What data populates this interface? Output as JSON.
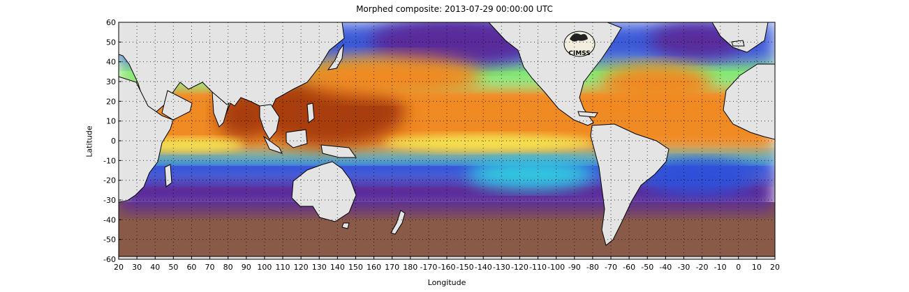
{
  "title": "Morphed composite: 2013-07-29 00:00:00 UTC",
  "chart_data": {
    "type": "heatmap",
    "title": "Morphed composite: 2013-07-29 00:00:00 UTC",
    "xlabel": "Longitude",
    "ylabel": "Latitude",
    "xlim": [
      20,
      380
    ],
    "ylim": [
      -60,
      60
    ],
    "x_ticks": [
      "20",
      "30",
      "40",
      "50",
      "60",
      "70",
      "80",
      "90",
      "100",
      "110",
      "120",
      "130",
      "140",
      "150",
      "160",
      "170",
      "180",
      "-170",
      "-160",
      "-150",
      "-140",
      "-130",
      "-120",
      "-110",
      "-100",
      "-90",
      "-80",
      "-70",
      "-60",
      "-50",
      "-40",
      "-30",
      "-20",
      "-10",
      "0",
      "10",
      "20"
    ],
    "y_ticks": [
      "60",
      "50",
      "40",
      "30",
      "20",
      "10",
      "0",
      "-10",
      "-20",
      "-30",
      "-40",
      "-50",
      "-60"
    ],
    "grid": true,
    "grid_style": "dotted",
    "colors": {
      "land": "#e4e4e4",
      "coast": "#000000",
      "high": "#a83c08",
      "orange": "#f08a20",
      "yellow": "#f4e050",
      "green": "#7fe870",
      "cyan": "#30c8e0",
      "blue": "#2f4fd8",
      "purple": "#5a2a9a",
      "brown": "#8a5a48"
    },
    "logo_text": "CIMSS"
  }
}
